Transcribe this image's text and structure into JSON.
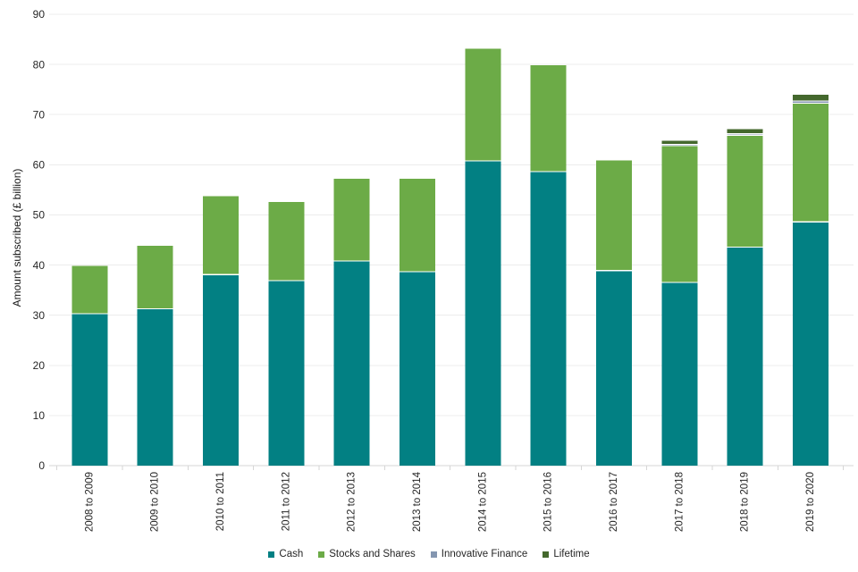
{
  "page": {
    "background": "#ffffff"
  },
  "chart_data": {
    "type": "bar",
    "stacked": true,
    "title": "",
    "ylabel": "Amount subscribed (£ billion)",
    "ylim": [
      0,
      90
    ],
    "ytick_step": 10,
    "grid": true,
    "legend_position": "bottom",
    "categories": [
      "2008 to 2009",
      "2009 to 2010",
      "2010 to 2011",
      "2011 to 2012",
      "2012 to 2013",
      "2013 to 2014",
      "2014 to 2015",
      "2015 to 2016",
      "2016 to 2017",
      "2017 to 2018",
      "2018 to 2019",
      "2019 to 2020"
    ],
    "series": [
      {
        "name": "Cash",
        "color": "#028083",
        "values": [
          30.4,
          31.4,
          38.2,
          37.0,
          40.9,
          38.8,
          60.9,
          58.7,
          39.0,
          36.6,
          43.7,
          48.7
        ]
      },
      {
        "name": "Stocks and Shares",
        "color": "#6CAB47",
        "values": [
          9.4,
          12.4,
          15.5,
          15.6,
          16.3,
          18.4,
          22.2,
          21.1,
          22.1,
          27.3,
          22.3,
          23.7
        ]
      },
      {
        "name": "Innovative Finance",
        "color": "#8496B0",
        "values": [
          0,
          0,
          0,
          0,
          0,
          0,
          0,
          0,
          0.04,
          0.3,
          0.3,
          0.4
        ]
      },
      {
        "name": "Lifetime",
        "color": "#44682D",
        "values": [
          0,
          0,
          0,
          0,
          0,
          0,
          0,
          0,
          0,
          0.6,
          0.8,
          1.2
        ]
      }
    ],
    "style": {
      "grid_color": "#ECECEC",
      "axis_color": "#D6D6D6",
      "text_color": "#262626",
      "separator_color": "#FFFFFF"
    }
  }
}
